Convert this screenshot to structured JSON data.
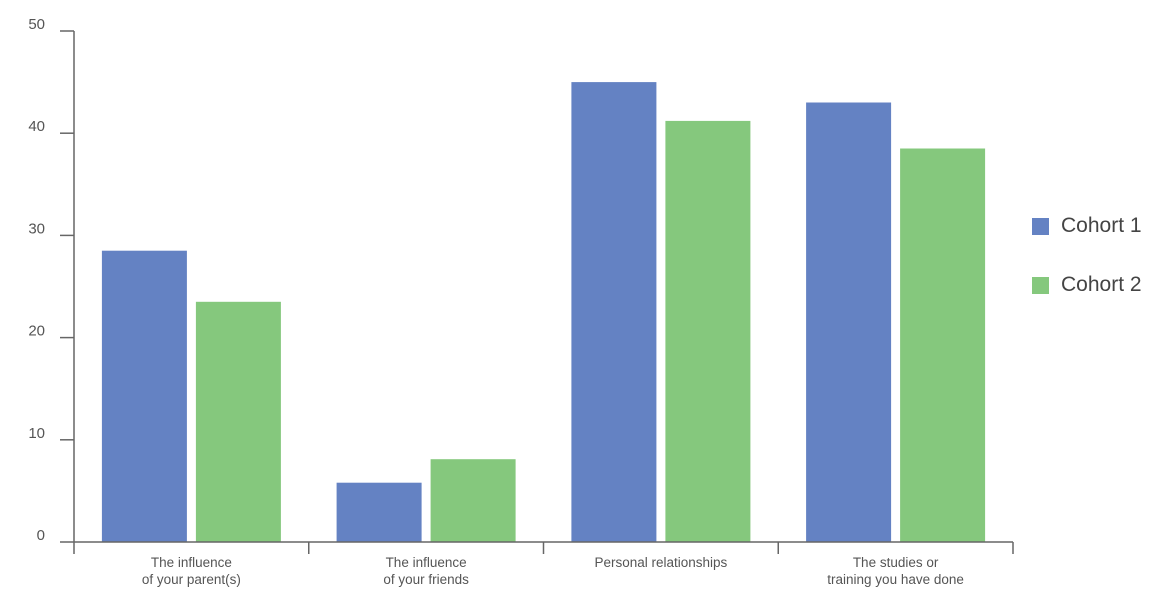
{
  "chart_data": {
    "type": "bar",
    "categories": [
      [
        "The influence",
        "of your parent(s)"
      ],
      [
        "The influence",
        "of your friends"
      ],
      [
        "Personal relationships"
      ],
      [
        "The studies or",
        "training you have done"
      ]
    ],
    "series": [
      {
        "name": "Cohort 1",
        "color": "#6482c3",
        "values": [
          28.5,
          5.8,
          45.0,
          43.0
        ]
      },
      {
        "name": "Cohort 2",
        "color": "#85c87d",
        "values": [
          23.5,
          8.1,
          41.2,
          38.5
        ]
      }
    ],
    "ylim": [
      0,
      50
    ],
    "yticks": [
      0,
      10,
      20,
      30,
      40,
      50
    ],
    "title": "",
    "xlabel": "",
    "ylabel": "",
    "grid": false,
    "legend_position": "right"
  }
}
